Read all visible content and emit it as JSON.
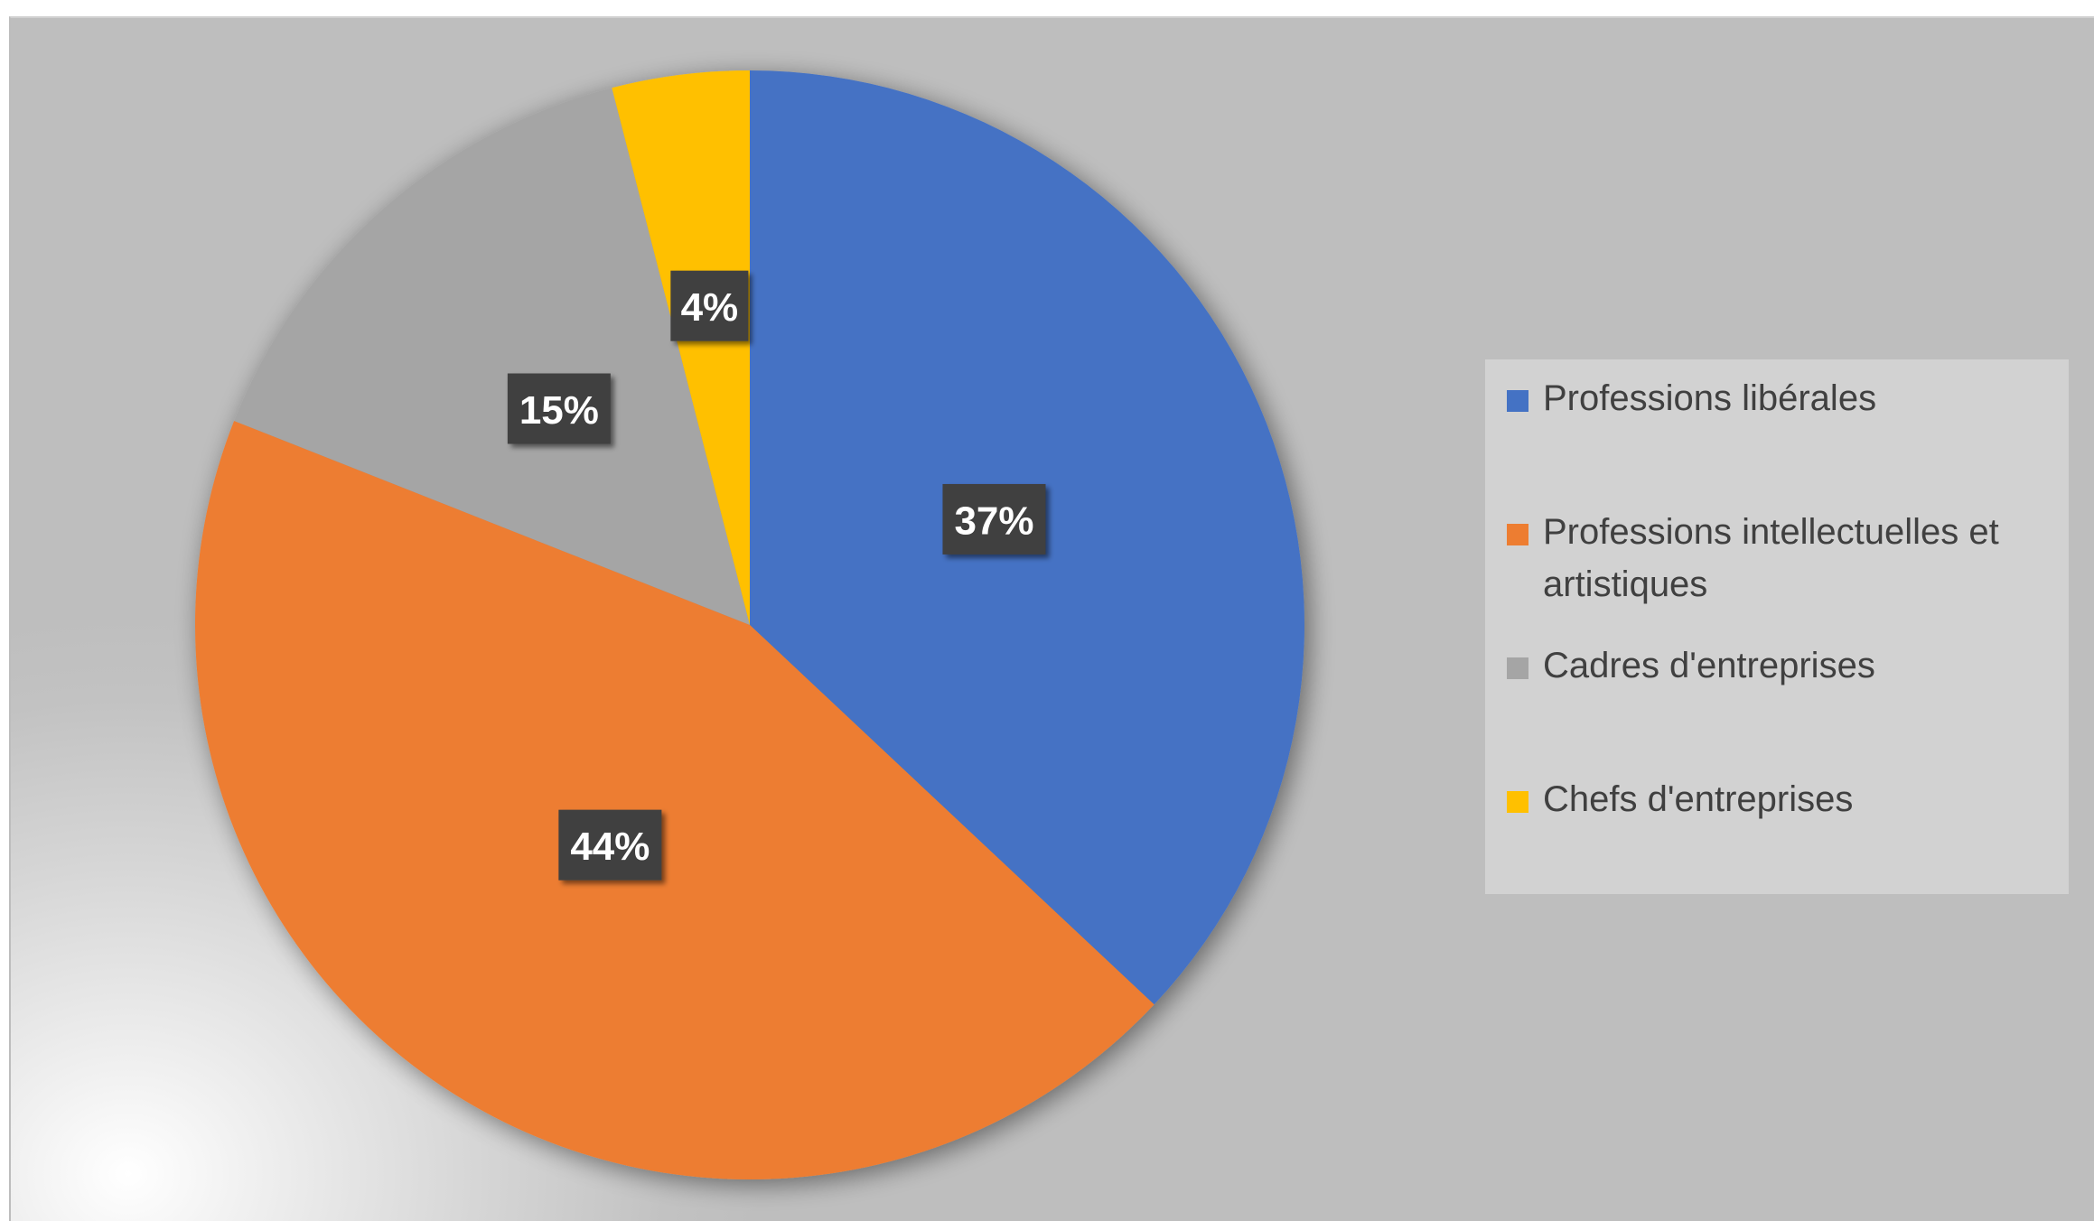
{
  "chart_data": {
    "type": "pie",
    "title": "",
    "slices": [
      {
        "label": "Professions libérales",
        "value": 37,
        "display": "37%",
        "color": "#4472C4"
      },
      {
        "label": "Professions intellectuelles et artistiques",
        "value": 44,
        "display": "44%",
        "color": "#ED7D31"
      },
      {
        "label": "Cadres d'entreprises",
        "value": 15,
        "display": "15%",
        "color": "#A5A5A5"
      },
      {
        "label": "Chefs d'entreprises",
        "value": 4,
        "display": "4%",
        "color": "#FFC000"
      }
    ],
    "start_angle": "12 o'clock",
    "direction": "clockwise",
    "legend_position": "right",
    "data_labels": "percent, white on dark boxes"
  },
  "legend": {
    "items": [
      {
        "label": "Professions libérales",
        "color": "#4472C4"
      },
      {
        "label": "Professions intellectuelles et artistiques",
        "color": "#ED7D31"
      },
      {
        "label": "Cadres d'entreprises",
        "color": "#A5A5A5"
      },
      {
        "label": "Chefs d'entreprises",
        "color": "#FFC000"
      }
    ]
  }
}
